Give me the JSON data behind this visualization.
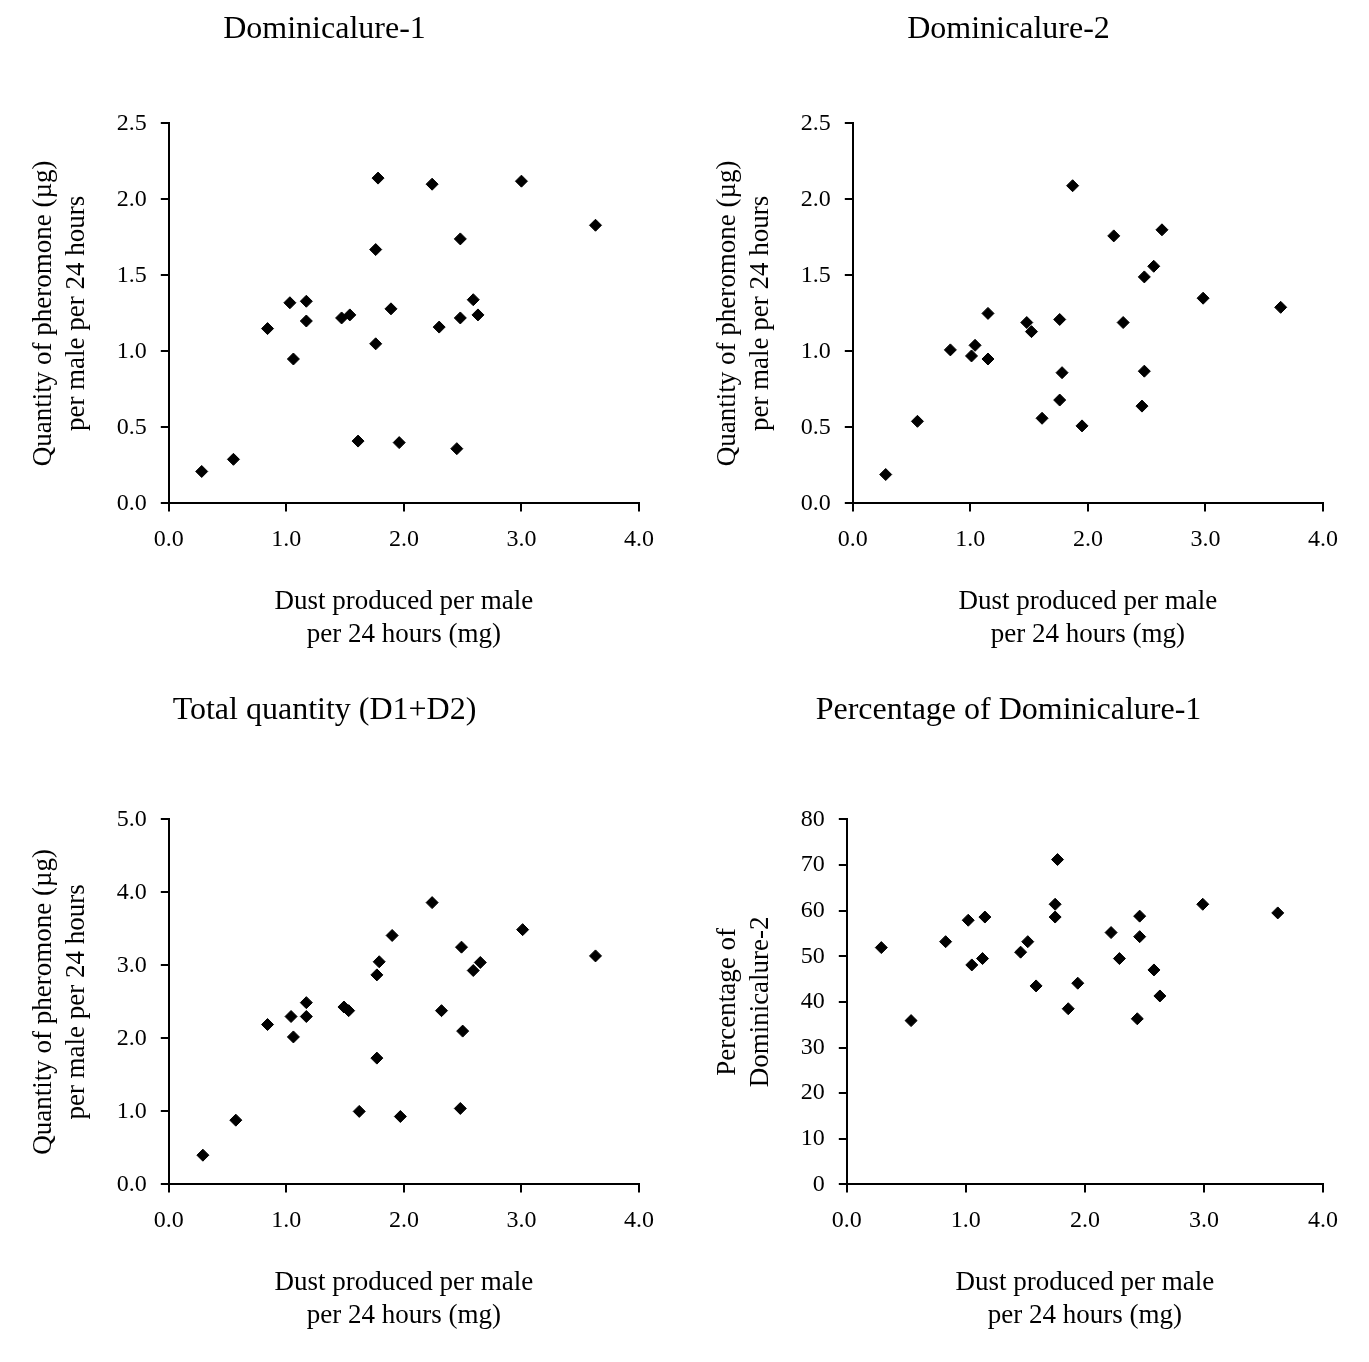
{
  "chart_data": [
    {
      "type": "scatter",
      "title": "Dominicalure-1",
      "xlabel": "Dust produced per male\nper 24 hours (mg)",
      "ylabel": "Quantity of pheromone (µg)\nper male per 24 hours",
      "marker": "diamond",
      "legend": false,
      "grid": false,
      "xlim": [
        0,
        4
      ],
      "xticks": [
        {
          "value": 0,
          "label": "0.0"
        },
        {
          "value": 1,
          "label": "1.0"
        },
        {
          "value": 2,
          "label": "2.0"
        },
        {
          "value": 3,
          "label": "3.0"
        },
        {
          "value": 4,
          "label": "4.0"
        }
      ],
      "ylim": [
        0,
        2.5
      ],
      "yticks": [
        {
          "value": 0,
          "label": "0.0"
        },
        {
          "value": 0.5,
          "label": "0.5"
        },
        {
          "value": 1,
          "label": "1.0"
        },
        {
          "value": 1.5,
          "label": "1.5"
        },
        {
          "value": 2,
          "label": "2.0"
        },
        {
          "value": 2.5,
          "label": "2.5"
        }
      ],
      "series": [
        {
          "color": "#000000",
          "x": [
            0.28,
            0.55,
            0.84,
            1.03,
            1.17,
            1.17,
            1.06,
            1.47,
            1.54,
            1.78,
            1.76,
            1.89,
            1.76,
            1.61,
            1.96,
            2.24,
            2.48,
            2.3,
            2.48,
            2.59,
            2.63,
            2.45,
            3.0,
            3.63
          ],
          "values": [
            0.21,
            0.29,
            1.15,
            1.32,
            1.33,
            1.2,
            0.95,
            1.22,
            1.24,
            2.14,
            1.67,
            1.28,
            1.05,
            0.41,
            0.4,
            2.1,
            1.74,
            1.16,
            1.22,
            1.34,
            1.24,
            0.36,
            2.12,
            1.83
          ]
        }
      ]
    },
    {
      "type": "scatter",
      "title": "Dominicalure-2",
      "xlabel": "Dust produced per male\nper 24 hours (mg)",
      "ylabel": "Quantity of pheromone (µg)\nper male per 24 hours",
      "marker": "diamond",
      "legend": false,
      "grid": false,
      "xlim": [
        0,
        4
      ],
      "xticks": [
        {
          "value": 0,
          "label": "0.0"
        },
        {
          "value": 1,
          "label": "1.0"
        },
        {
          "value": 2,
          "label": "2.0"
        },
        {
          "value": 3,
          "label": "3.0"
        },
        {
          "value": 4,
          "label": "4.0"
        }
      ],
      "ylim": [
        0,
        2.5
      ],
      "yticks": [
        {
          "value": 0,
          "label": "0.0"
        },
        {
          "value": 0.5,
          "label": "0.5"
        },
        {
          "value": 1,
          "label": "1.0"
        },
        {
          "value": 1.5,
          "label": "1.5"
        },
        {
          "value": 2,
          "label": "2.0"
        },
        {
          "value": 2.5,
          "label": "2.5"
        }
      ],
      "series": [
        {
          "color": "#000000",
          "x": [
            0.28,
            0.55,
            0.83,
            1.04,
            1.01,
            1.15,
            1.15,
            1.48,
            1.52,
            1.76,
            1.78,
            1.76,
            1.61,
            1.95,
            1.87,
            2.22,
            2.3,
            2.63,
            2.56,
            2.48,
            2.48,
            2.46,
            2.98,
            3.64
          ],
          "values": [
            0.19,
            0.54,
            1.01,
            1.04,
            0.97,
            0.95,
            1.25,
            1.19,
            1.13,
            1.21,
            0.86,
            0.68,
            0.56,
            0.51,
            2.09,
            1.76,
            1.19,
            1.8,
            1.56,
            1.49,
            0.87,
            0.64,
            1.35,
            1.29
          ]
        }
      ]
    },
    {
      "type": "scatter",
      "title": "Total quantity (D1+D2)",
      "xlabel": "Dust produced per male\nper 24 hours (mg)",
      "ylabel": "Quantity of pheromone (µg)\nper male per 24 hours",
      "marker": "diamond",
      "legend": false,
      "grid": false,
      "xlim": [
        0,
        4
      ],
      "xticks": [
        {
          "value": 0,
          "label": "0.0"
        },
        {
          "value": 1,
          "label": "1.0"
        },
        {
          "value": 2,
          "label": "2.0"
        },
        {
          "value": 3,
          "label": "3.0"
        },
        {
          "value": 4,
          "label": "4.0"
        }
      ],
      "ylim": [
        0,
        5
      ],
      "yticks": [
        {
          "value": 0,
          "label": "0.0"
        },
        {
          "value": 1,
          "label": "1.0"
        },
        {
          "value": 2,
          "label": "2.0"
        },
        {
          "value": 3,
          "label": "3.0"
        },
        {
          "value": 4,
          "label": "4.0"
        },
        {
          "value": 5,
          "label": "5.0"
        }
      ],
      "series": [
        {
          "color": "#000000",
          "x": [
            0.29,
            0.57,
            0.84,
            1.04,
            1.06,
            1.17,
            1.17,
            1.49,
            1.53,
            1.79,
            1.77,
            1.9,
            1.77,
            1.62,
            1.97,
            2.24,
            2.49,
            2.32,
            2.5,
            2.59,
            2.65,
            2.48,
            3.01,
            3.63
          ],
          "values": [
            0.4,
            0.88,
            2.19,
            2.3,
            2.02,
            2.49,
            2.3,
            2.43,
            2.38,
            3.05,
            2.87,
            3.41,
            1.73,
            1.0,
            0.93,
            3.86,
            3.25,
            2.38,
            2.1,
            2.93,
            3.04,
            1.04,
            3.49,
            3.13
          ]
        }
      ]
    },
    {
      "type": "scatter",
      "title": "Percentage of Dominicalure-1",
      "xlabel": "Dust produced per male\nper 24 hours (mg)",
      "ylabel": "Percentage of\nDominicalure-2",
      "marker": "diamond",
      "legend": false,
      "grid": false,
      "xlim": [
        0,
        4
      ],
      "xticks": [
        {
          "value": 0,
          "label": "0.0"
        },
        {
          "value": 1,
          "label": "1.0"
        },
        {
          "value": 2,
          "label": "2.0"
        },
        {
          "value": 3,
          "label": "3.0"
        },
        {
          "value": 4,
          "label": "4.0"
        }
      ],
      "ylim": [
        0,
        80
      ],
      "yticks": [
        0,
        10,
        20,
        30,
        40,
        50,
        60,
        70,
        80
      ],
      "series": [
        {
          "color": "#000000",
          "x": [
            0.29,
            0.54,
            0.83,
            1.02,
            1.05,
            1.14,
            1.16,
            1.46,
            1.52,
            1.59,
            1.75,
            1.75,
            1.77,
            1.86,
            1.94,
            2.22,
            2.29,
            2.46,
            2.46,
            2.44,
            2.58,
            2.63,
            2.99,
            3.62
          ],
          "values": [
            51.9,
            35.9,
            53.2,
            57.9,
            48.1,
            49.5,
            58.6,
            50.9,
            53.2,
            43.5,
            61.4,
            58.6,
            71.2,
            38.5,
            44.1,
            55.2,
            49.5,
            58.8,
            54.3,
            36.3,
            47.0,
            41.3,
            61.4,
            59.5
          ]
        }
      ]
    }
  ]
}
